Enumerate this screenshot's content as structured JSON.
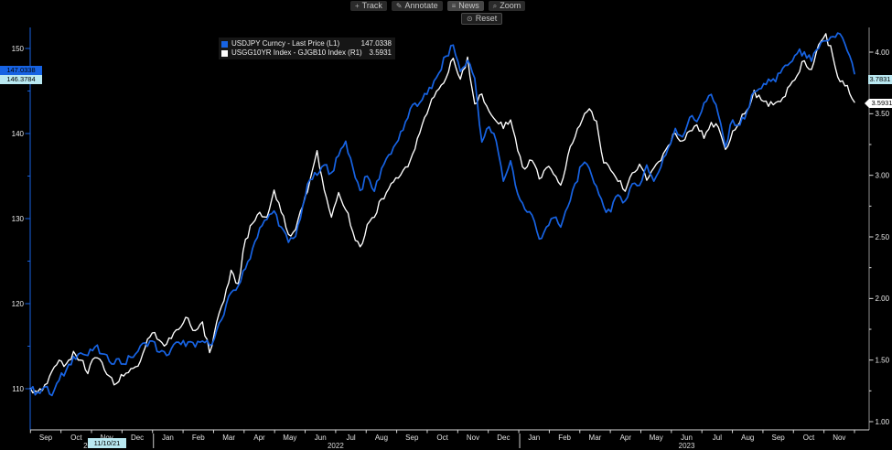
{
  "toolbar": {
    "track_label": "Track",
    "annotate_label": "Annotate",
    "news_label": "News",
    "zoom_label": "Zoom",
    "reset_label": "Reset",
    "icons": {
      "track": "+",
      "annotate": "✎",
      "news": "≡",
      "zoom": "⌕",
      "reset": "⊙"
    }
  },
  "legend": {
    "rows": [
      {
        "label": "USDJPY Curncy - Last Price (L1)",
        "value": "147.0338"
      },
      {
        "label": "USGG10YR Index - GJGB10 Index (R1)",
        "value": "3.5931"
      }
    ]
  },
  "badges": {
    "left_primary": "147.0338",
    "left_secondary": "146.3784",
    "right_secondary": "3.7831",
    "right_primary": "3.5931",
    "start_date": "11/10/21"
  },
  "colors": {
    "series1": "#1763e3",
    "series2": "#ffffff",
    "badge_cyan": "#b9e8f1",
    "axis_text": "#eaeaea",
    "right_axis_line": "#8f8f8f",
    "bottom_axis_line": "#d9d9d9"
  },
  "chart_data": {
    "type": "line",
    "x_start_label": "Sep 2021",
    "x_end_label": "Nov 2023",
    "sampling": "weekly",
    "months": [
      "Sep",
      "Oct",
      "Nov",
      "Dec",
      "Jan",
      "Feb",
      "Mar",
      "Apr",
      "May",
      "Jun",
      "Jul",
      "Aug",
      "Sep",
      "Oct",
      "Nov",
      "Dec",
      "Jan",
      "Feb",
      "Mar",
      "Apr",
      "May",
      "Jun",
      "Jul",
      "Aug",
      "Sep",
      "Oct",
      "Nov"
    ],
    "years": [
      {
        "label": "2021",
        "start": 0,
        "end": 3
      },
      {
        "label": "2022",
        "start": 4,
        "end": 15
      },
      {
        "label": "2023",
        "start": 16,
        "end": 26
      }
    ],
    "year_separator_boundaries": [
      4,
      16
    ],
    "left_axis": {
      "major": [
        150,
        140,
        130,
        120,
        110
      ],
      "minor": [
        145,
        135,
        125,
        115
      ],
      "range": [
        110,
        150
      ]
    },
    "right_axis": {
      "major": [
        4.0,
        3.5,
        3.0,
        2.5,
        2.0,
        1.5,
        1.0
      ],
      "minor": [
        3.75,
        3.25,
        2.75,
        2.25,
        1.75,
        1.25
      ],
      "range": [
        1.0,
        4.0
      ]
    },
    "legend_position": "top-left-inside",
    "grid": false,
    "series": [
      {
        "name": "USDJPY Curncy - Last Price",
        "axis": "L1",
        "color": "#1763e3",
        "last_value": 147.0338,
        "values": [
          109.9,
          109.6,
          110.2,
          109.2,
          111.0,
          112.2,
          113.8,
          114.2,
          113.9,
          114.9,
          114.1,
          113.2,
          113.5,
          112.9,
          113.7,
          114.4,
          115.4,
          115.6,
          114.3,
          113.9,
          115.2,
          115.2,
          115.5,
          114.9,
          115.6,
          115.1,
          116.9,
          118.7,
          121.3,
          122.1,
          124.1,
          126.5,
          128.9,
          129.9,
          130.9,
          129.0,
          127.2,
          127.9,
          131.5,
          134.6,
          135.1,
          136.3,
          135.4,
          137.4,
          139.1,
          136.0,
          133.3,
          135.0,
          133.2,
          135.9,
          137.5,
          138.8,
          140.4,
          142.9,
          143.2,
          144.7,
          145.3,
          147.1,
          149.1,
          150.4,
          147.3,
          148.6,
          146.5,
          139.0,
          140.8,
          139.1,
          134.4,
          136.8,
          132.9,
          131.1,
          130.4,
          127.6,
          129.0,
          130.1,
          129.0,
          131.4,
          134.1,
          136.3,
          135.9,
          133.8,
          131.4,
          130.8,
          132.8,
          132.1,
          134.1,
          133.9,
          136.3,
          134.4,
          136.1,
          138.3,
          140.6,
          139.6,
          141.9,
          141.4,
          143.6,
          144.6,
          142.2,
          138.4,
          141.6,
          141.0,
          142.6,
          144.9,
          145.3,
          146.4,
          146.1,
          147.7,
          148.3,
          149.4,
          149.6,
          148.5,
          150.0,
          150.9,
          151.4,
          151.7,
          149.7,
          147.0338
        ]
      },
      {
        "name": "USGG10YR Index - GJGB10 Index",
        "axis": "R1",
        "color": "#ffffff",
        "last_value": 3.5931,
        "values": [
          1.27,
          1.24,
          1.3,
          1.41,
          1.5,
          1.47,
          1.57,
          1.5,
          1.39,
          1.52,
          1.48,
          1.37,
          1.31,
          1.37,
          1.43,
          1.45,
          1.6,
          1.72,
          1.66,
          1.63,
          1.72,
          1.77,
          1.84,
          1.74,
          1.81,
          1.56,
          1.81,
          1.98,
          2.23,
          2.12,
          2.48,
          2.61,
          2.7,
          2.66,
          2.88,
          2.7,
          2.52,
          2.56,
          2.75,
          2.96,
          3.2,
          2.88,
          2.66,
          2.86,
          2.72,
          2.54,
          2.42,
          2.6,
          2.66,
          2.81,
          2.89,
          2.98,
          3.04,
          3.12,
          3.3,
          3.47,
          3.62,
          3.7,
          3.79,
          3.95,
          3.78,
          3.96,
          3.58,
          3.66,
          3.52,
          3.44,
          3.38,
          3.45,
          3.2,
          3.05,
          3.12,
          2.97,
          3.06,
          3.01,
          2.92,
          3.16,
          3.31,
          3.45,
          3.54,
          3.44,
          3.1,
          3.04,
          2.95,
          2.87,
          3.02,
          3.09,
          2.96,
          3.06,
          3.12,
          3.24,
          3.34,
          3.28,
          3.36,
          3.41,
          3.3,
          3.43,
          3.39,
          3.21,
          3.36,
          3.43,
          3.53,
          3.69,
          3.61,
          3.56,
          3.59,
          3.63,
          3.73,
          3.81,
          3.93,
          3.86,
          4.06,
          4.15,
          3.96,
          3.76,
          3.73,
          3.5931
        ]
      }
    ]
  }
}
